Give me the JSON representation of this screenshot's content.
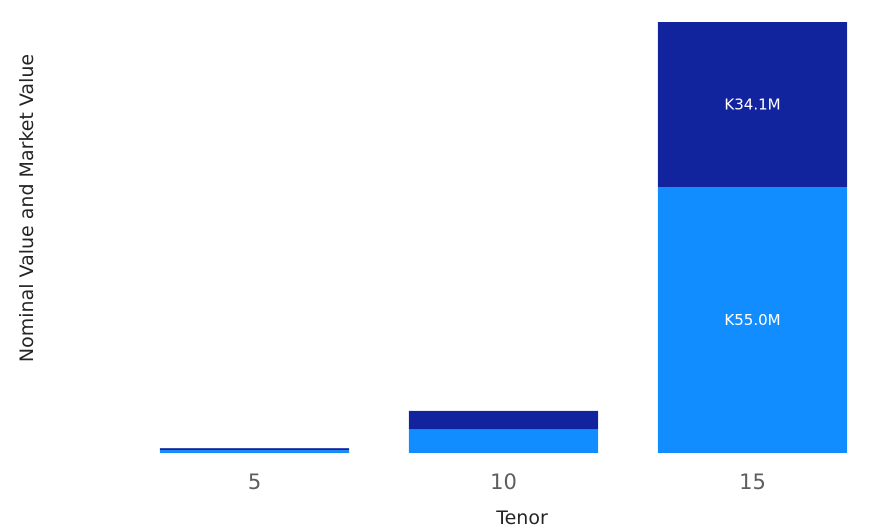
{
  "chart_data": {
    "type": "bar",
    "stacked": true,
    "categories": [
      "5",
      "10",
      "15"
    ],
    "series": [
      {
        "values": [
          0.6,
          4.9,
          55.0
        ],
        "color": "#118DFF"
      },
      {
        "values": [
          0.4,
          3.8,
          34.1
        ],
        "color": "#12239E"
      }
    ],
    "data_labels": {
      "15": [
        "K55.0M",
        "K34.1M"
      ]
    },
    "xlabel": "Tenor",
    "ylabel": "Nominal Value and Market Value",
    "ylim": [
      0,
      89.1
    ],
    "grid": false,
    "legend": "none"
  }
}
